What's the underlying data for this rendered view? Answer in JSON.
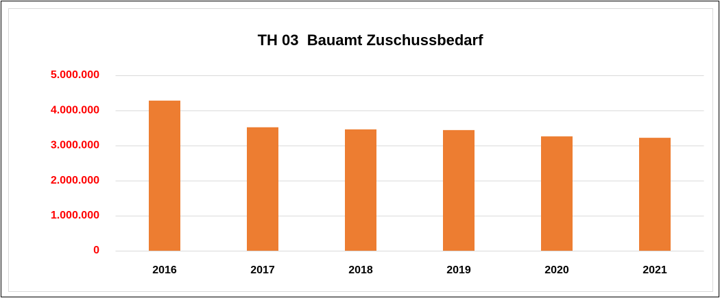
{
  "chart_data": {
    "type": "bar",
    "title": "TH 03  Bauamt Zuschussbedarf",
    "categories": [
      "2016",
      "2017",
      "2018",
      "2019",
      "2020",
      "2021"
    ],
    "values": [
      4280000,
      3520000,
      3460000,
      3440000,
      3260000,
      3220000
    ],
    "color": "#ed7d31",
    "ylim": [
      0,
      5000000
    ],
    "yticks": [
      0,
      {
        "value": 1000000,
        "label": "1.000.000"
      },
      {
        "value": 2000000,
        "label": "2.000.000"
      },
      {
        "value": 3000000,
        "label": "3.000.000"
      },
      {
        "value": 4000000,
        "label": "4.000.000"
      },
      {
        "value": 5000000,
        "label": "5.000.000"
      }
    ],
    "grid": true
  }
}
